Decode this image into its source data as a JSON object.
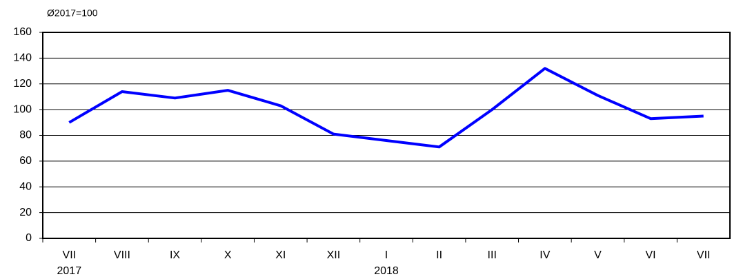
{
  "chart_data": {
    "type": "line",
    "y_axis_label": "Ø2017=100",
    "categories": [
      "VII",
      "VIII",
      "IX",
      "X",
      "XI",
      "XII",
      "I",
      "II",
      "III",
      "IV",
      "V",
      "VI",
      "VII"
    ],
    "year_labels": [
      "2017",
      null,
      null,
      null,
      null,
      null,
      "2018",
      null,
      null,
      null,
      null,
      null,
      null
    ],
    "series": [
      {
        "color": "#0000ff",
        "values": [
          90,
          114,
          109,
          115,
          103,
          81,
          76,
          71,
          100,
          132,
          111,
          93,
          95
        ]
      }
    ],
    "ylim": [
      0,
      160
    ],
    "yticks": [
      0,
      20,
      40,
      60,
      80,
      100,
      120,
      140,
      160
    ],
    "grid": true
  }
}
